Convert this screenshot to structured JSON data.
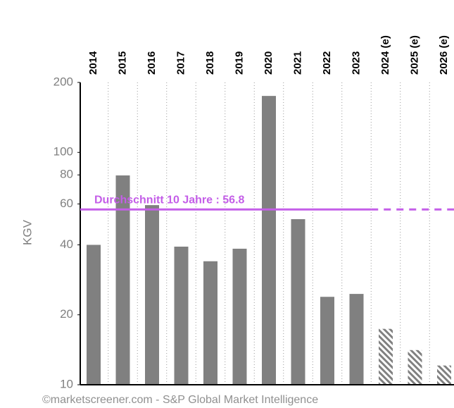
{
  "chart_data": {
    "type": "bar",
    "y_label": "KGV",
    "categories": [
      "2014",
      "2015",
      "2016",
      "2017",
      "2018",
      "2019",
      "2020",
      "2021",
      "2022",
      "2023",
      "2024 (e)",
      "2025 (e)",
      "2026 (e)"
    ],
    "values": [
      40,
      79.6,
      59.3,
      39.3,
      34,
      38.5,
      175,
      51.6,
      23.9,
      24.6,
      17.4,
      14.1,
      12.1
    ],
    "color": "#808080",
    "hatch_from_index": 10,
    "ylim": [
      10,
      200
    ],
    "yticks": [
      10,
      20,
      40,
      60,
      80,
      100,
      200
    ],
    "log_scale": true,
    "grid": true,
    "average": {
      "label": "Durchschnitt 10 Jahre : 56.8",
      "value": 56.8,
      "color": "#c45ee8"
    },
    "footer": "©marketscreener.com - S&P Global Market Intelligence"
  }
}
